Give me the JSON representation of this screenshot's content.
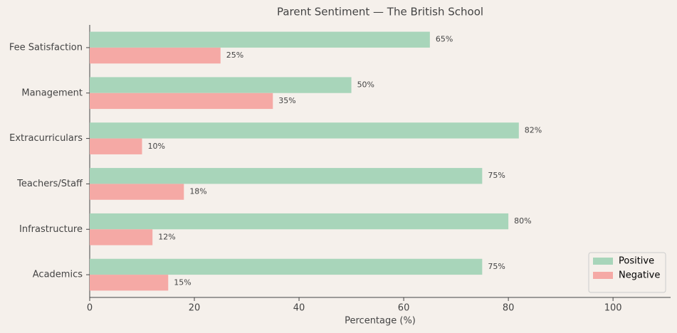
{
  "chart_data": {
    "type": "barh",
    "title": "Parent Sentiment — The British School",
    "x_label": "Percentage (%)",
    "categories": [
      "Academics",
      "Infrastructure",
      "Teachers/Staff",
      "Extracurriculars",
      "Management",
      "Fee Satisfaction"
    ],
    "series": [
      {
        "name": "Positive",
        "color": "#a8d5ba",
        "values": [
          75,
          80,
          75,
          82,
          50,
          65
        ],
        "value_labels": [
          "75%",
          "80%",
          "75%",
          "82%",
          "50%",
          "65%"
        ]
      },
      {
        "name": "Negative",
        "color": "#f5a9a5",
        "values": [
          15,
          12,
          18,
          10,
          35,
          25
        ],
        "value_labels": [
          "15%",
          "12%",
          "18%",
          "10%",
          "35%",
          "25%"
        ]
      }
    ],
    "xlim": [
      0,
      111
    ],
    "xticks": [
      0,
      20,
      40,
      60,
      80,
      100
    ],
    "grid": false,
    "legend": "lower right"
  }
}
